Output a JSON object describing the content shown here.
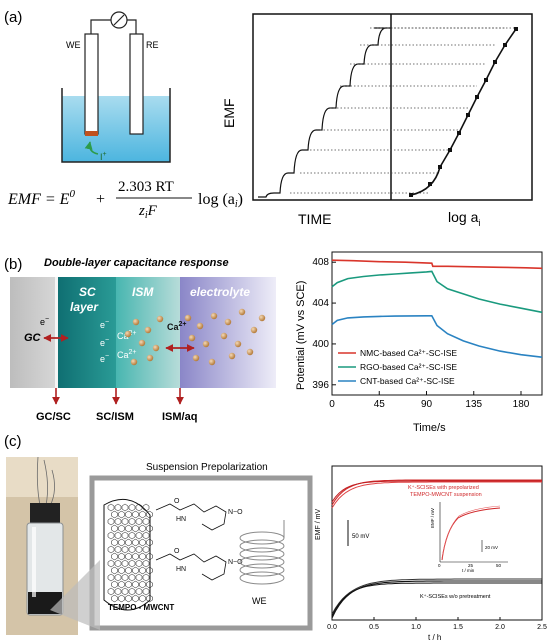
{
  "panel_a": {
    "label": "(a)",
    "we": "WE",
    "re": "RE",
    "ion": "I",
    "ion_sup": "+",
    "formula": {
      "lhs": "EMF = E",
      "sup0": "0",
      "plus": "+",
      "numerator": "2.303 RT",
      "denominator": "z",
      "denom_sub": "i",
      "denom_F": "F",
      "log": "log (a",
      "log_sub": "i",
      "close": ")"
    },
    "emf_label": "EMF",
    "time_label": "TIME",
    "log_label": "log a",
    "log_sub": "i"
  },
  "panel_b": {
    "label": "(b)",
    "title": "Double-layer capacitance response",
    "layers": {
      "gc": "GC",
      "sc1": "SC",
      "sc2": "layer",
      "ism": "ISM",
      "electrolyte": "electrolyte"
    },
    "interfaces": [
      "GC/SC",
      "SC/ISM",
      "ISM/aq"
    ],
    "electron": "e",
    "electron_sup": "−",
    "calcium": "Ca",
    "calcium_sup": "2+",
    "chart_data": {
      "type": "line",
      "xlabel": "Time/s",
      "ylabel": "Potential (mV vs SCE)",
      "x_ticks": [
        "0",
        "45",
        "90",
        "135",
        "180"
      ],
      "y_ticks": [
        "396",
        "400",
        "404",
        "408"
      ],
      "xlim": [
        0,
        200
      ],
      "ylim": [
        395,
        409
      ],
      "series": [
        {
          "name": "NMC-based Ca²⁺-SC-ISE",
          "color": "#d9352b",
          "x": [
            0,
            20,
            45,
            70,
            95,
            96,
            110,
            135,
            160,
            185,
            200
          ],
          "y": [
            408.2,
            408.15,
            408.05,
            408.0,
            407.9,
            407.6,
            407.6,
            407.55,
            407.5,
            407.45,
            407.4
          ]
        },
        {
          "name": "RGO-based Ca²⁺-SC-ISE",
          "color": "#1a9a7e",
          "x": [
            0,
            5,
            15,
            30,
            45,
            60,
            75,
            90,
            95,
            100,
            110,
            125,
            140,
            160,
            180,
            200
          ],
          "y": [
            405.6,
            406.0,
            406.4,
            406.6,
            406.75,
            406.85,
            406.95,
            407.05,
            407.1,
            406.1,
            405.4,
            404.9,
            404.4,
            403.9,
            403.5,
            403.1
          ]
        },
        {
          "name": "CNT-based Ca²⁺-SC-ISE",
          "color": "#2a83c2",
          "x": [
            0,
            5,
            15,
            30,
            45,
            60,
            75,
            90,
            95,
            100,
            110,
            125,
            140,
            160,
            180,
            200
          ],
          "y": [
            401.9,
            402.3,
            402.55,
            402.65,
            402.7,
            402.72,
            402.74,
            402.75,
            402.75,
            401.8,
            401.0,
            400.3,
            399.8,
            399.3,
            398.95,
            398.7
          ]
        }
      ]
    }
  },
  "panel_c": {
    "label": "(c)",
    "heading": "Suspension Prepolarization",
    "tempo": "TEMPO - MWCNT",
    "we": "WE",
    "chart_data": {
      "type": "line",
      "xlabel": "t / h",
      "ylabel": "EMF / mV",
      "x_ticks": [
        "0.0",
        "0.5",
        "1.0",
        "1.5",
        "2.0",
        "2.5"
      ],
      "xlim": [
        0,
        2.5
      ],
      "scale_bar": "50 mV",
      "annotation_top_1": "K⁺-SCISEs with prepolarized",
      "annotation_top_2": "TEMPO-MWCNT suspension",
      "annotation_bottom": "K⁺-SCISEs w/o pretreatment",
      "inset": {
        "ylabel": "EMF / mV",
        "xlabel": "t / min",
        "x_ticks": [
          "0",
          "25",
          "50"
        ],
        "scale_bar": "20 mV"
      }
    }
  }
}
